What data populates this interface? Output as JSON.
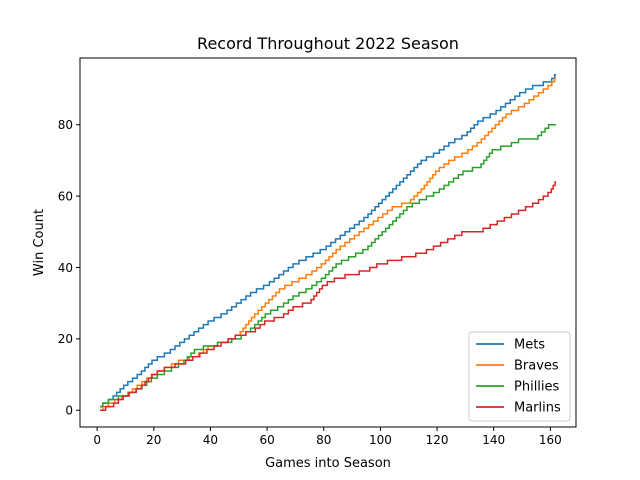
{
  "chart_data": {
    "type": "line",
    "title": "Record Throughout 2022 Season",
    "xlabel": "Games into Season",
    "ylabel": "Win Count",
    "xlim": [
      -6.05,
      169.05
    ],
    "ylim": [
      -4.7,
      98.7
    ],
    "xticks": [
      0,
      20,
      40,
      60,
      80,
      100,
      120,
      140,
      160
    ],
    "yticks": [
      0,
      20,
      40,
      60,
      80
    ],
    "grid": false,
    "legend_position": "lower right",
    "series": [
      {
        "name": "Mets",
        "color": "#1f77b4",
        "points": [
          [
            1,
            1
          ],
          [
            5,
            3
          ],
          [
            10,
            7
          ],
          [
            15,
            10
          ],
          [
            20,
            14
          ],
          [
            25,
            16
          ],
          [
            30,
            19
          ],
          [
            35,
            22
          ],
          [
            40,
            25
          ],
          [
            45,
            27
          ],
          [
            50,
            30
          ],
          [
            55,
            33
          ],
          [
            60,
            35
          ],
          [
            65,
            38
          ],
          [
            70,
            41
          ],
          [
            75,
            43
          ],
          [
            80,
            45
          ],
          [
            85,
            48
          ],
          [
            90,
            51
          ],
          [
            95,
            54
          ],
          [
            100,
            58
          ],
          [
            105,
            62
          ],
          [
            110,
            66
          ],
          [
            115,
            70
          ],
          [
            120,
            72
          ],
          [
            125,
            75
          ],
          [
            130,
            77
          ],
          [
            135,
            81
          ],
          [
            140,
            83
          ],
          [
            145,
            86
          ],
          [
            150,
            89
          ],
          [
            155,
            91
          ],
          [
            160,
            92
          ],
          [
            162,
            94
          ]
        ]
      },
      {
        "name": "Braves",
        "color": "#ff7f0e",
        "points": [
          [
            1,
            0
          ],
          [
            5,
            2
          ],
          [
            10,
            4
          ],
          [
            15,
            7
          ],
          [
            20,
            10
          ],
          [
            25,
            12
          ],
          [
            30,
            14
          ],
          [
            35,
            15
          ],
          [
            40,
            18
          ],
          [
            45,
            19
          ],
          [
            50,
            21
          ],
          [
            55,
            26
          ],
          [
            60,
            30
          ],
          [
            65,
            34
          ],
          [
            70,
            36
          ],
          [
            75,
            38
          ],
          [
            80,
            41
          ],
          [
            85,
            45
          ],
          [
            90,
            48
          ],
          [
            95,
            51
          ],
          [
            100,
            54
          ],
          [
            105,
            57
          ],
          [
            110,
            58
          ],
          [
            115,
            62
          ],
          [
            120,
            67
          ],
          [
            125,
            70
          ],
          [
            130,
            72
          ],
          [
            135,
            75
          ],
          [
            140,
            79
          ],
          [
            145,
            83
          ],
          [
            150,
            85
          ],
          [
            155,
            88
          ],
          [
            160,
            91
          ],
          [
            162,
            93
          ]
        ]
      },
      {
        "name": "Phillies",
        "color": "#2ca02c",
        "points": [
          [
            1,
            1
          ],
          [
            5,
            3
          ],
          [
            10,
            4
          ],
          [
            15,
            6
          ],
          [
            20,
            9
          ],
          [
            25,
            11
          ],
          [
            30,
            13
          ],
          [
            35,
            17
          ],
          [
            40,
            18
          ],
          [
            45,
            19
          ],
          [
            50,
            20
          ],
          [
            55,
            23
          ],
          [
            60,
            27
          ],
          [
            65,
            29
          ],
          [
            70,
            32
          ],
          [
            75,
            34
          ],
          [
            80,
            37
          ],
          [
            85,
            41
          ],
          [
            90,
            43
          ],
          [
            95,
            45
          ],
          [
            100,
            49
          ],
          [
            105,
            53
          ],
          [
            110,
            57
          ],
          [
            115,
            59
          ],
          [
            120,
            61
          ],
          [
            125,
            64
          ],
          [
            130,
            67
          ],
          [
            135,
            68
          ],
          [
            140,
            73
          ],
          [
            145,
            74
          ],
          [
            150,
            76
          ],
          [
            155,
            76
          ],
          [
            160,
            80
          ],
          [
            162,
            80
          ]
        ]
      },
      {
        "name": "Marlins",
        "color": "#d62728",
        "points": [
          [
            1,
            0
          ],
          [
            5,
            1
          ],
          [
            10,
            4
          ],
          [
            15,
            6
          ],
          [
            20,
            10
          ],
          [
            25,
            12
          ],
          [
            30,
            13
          ],
          [
            35,
            15
          ],
          [
            40,
            17
          ],
          [
            45,
            19
          ],
          [
            50,
            21
          ],
          [
            55,
            22
          ],
          [
            60,
            25
          ],
          [
            65,
            26
          ],
          [
            70,
            29
          ],
          [
            75,
            30
          ],
          [
            80,
            35
          ],
          [
            85,
            37
          ],
          [
            90,
            38
          ],
          [
            95,
            39
          ],
          [
            100,
            41
          ],
          [
            105,
            42
          ],
          [
            110,
            43
          ],
          [
            115,
            44
          ],
          [
            120,
            46
          ],
          [
            125,
            48
          ],
          [
            130,
            50
          ],
          [
            135,
            50
          ],
          [
            140,
            52
          ],
          [
            145,
            54
          ],
          [
            150,
            56
          ],
          [
            155,
            58
          ],
          [
            160,
            61
          ],
          [
            162,
            64
          ]
        ]
      }
    ]
  }
}
